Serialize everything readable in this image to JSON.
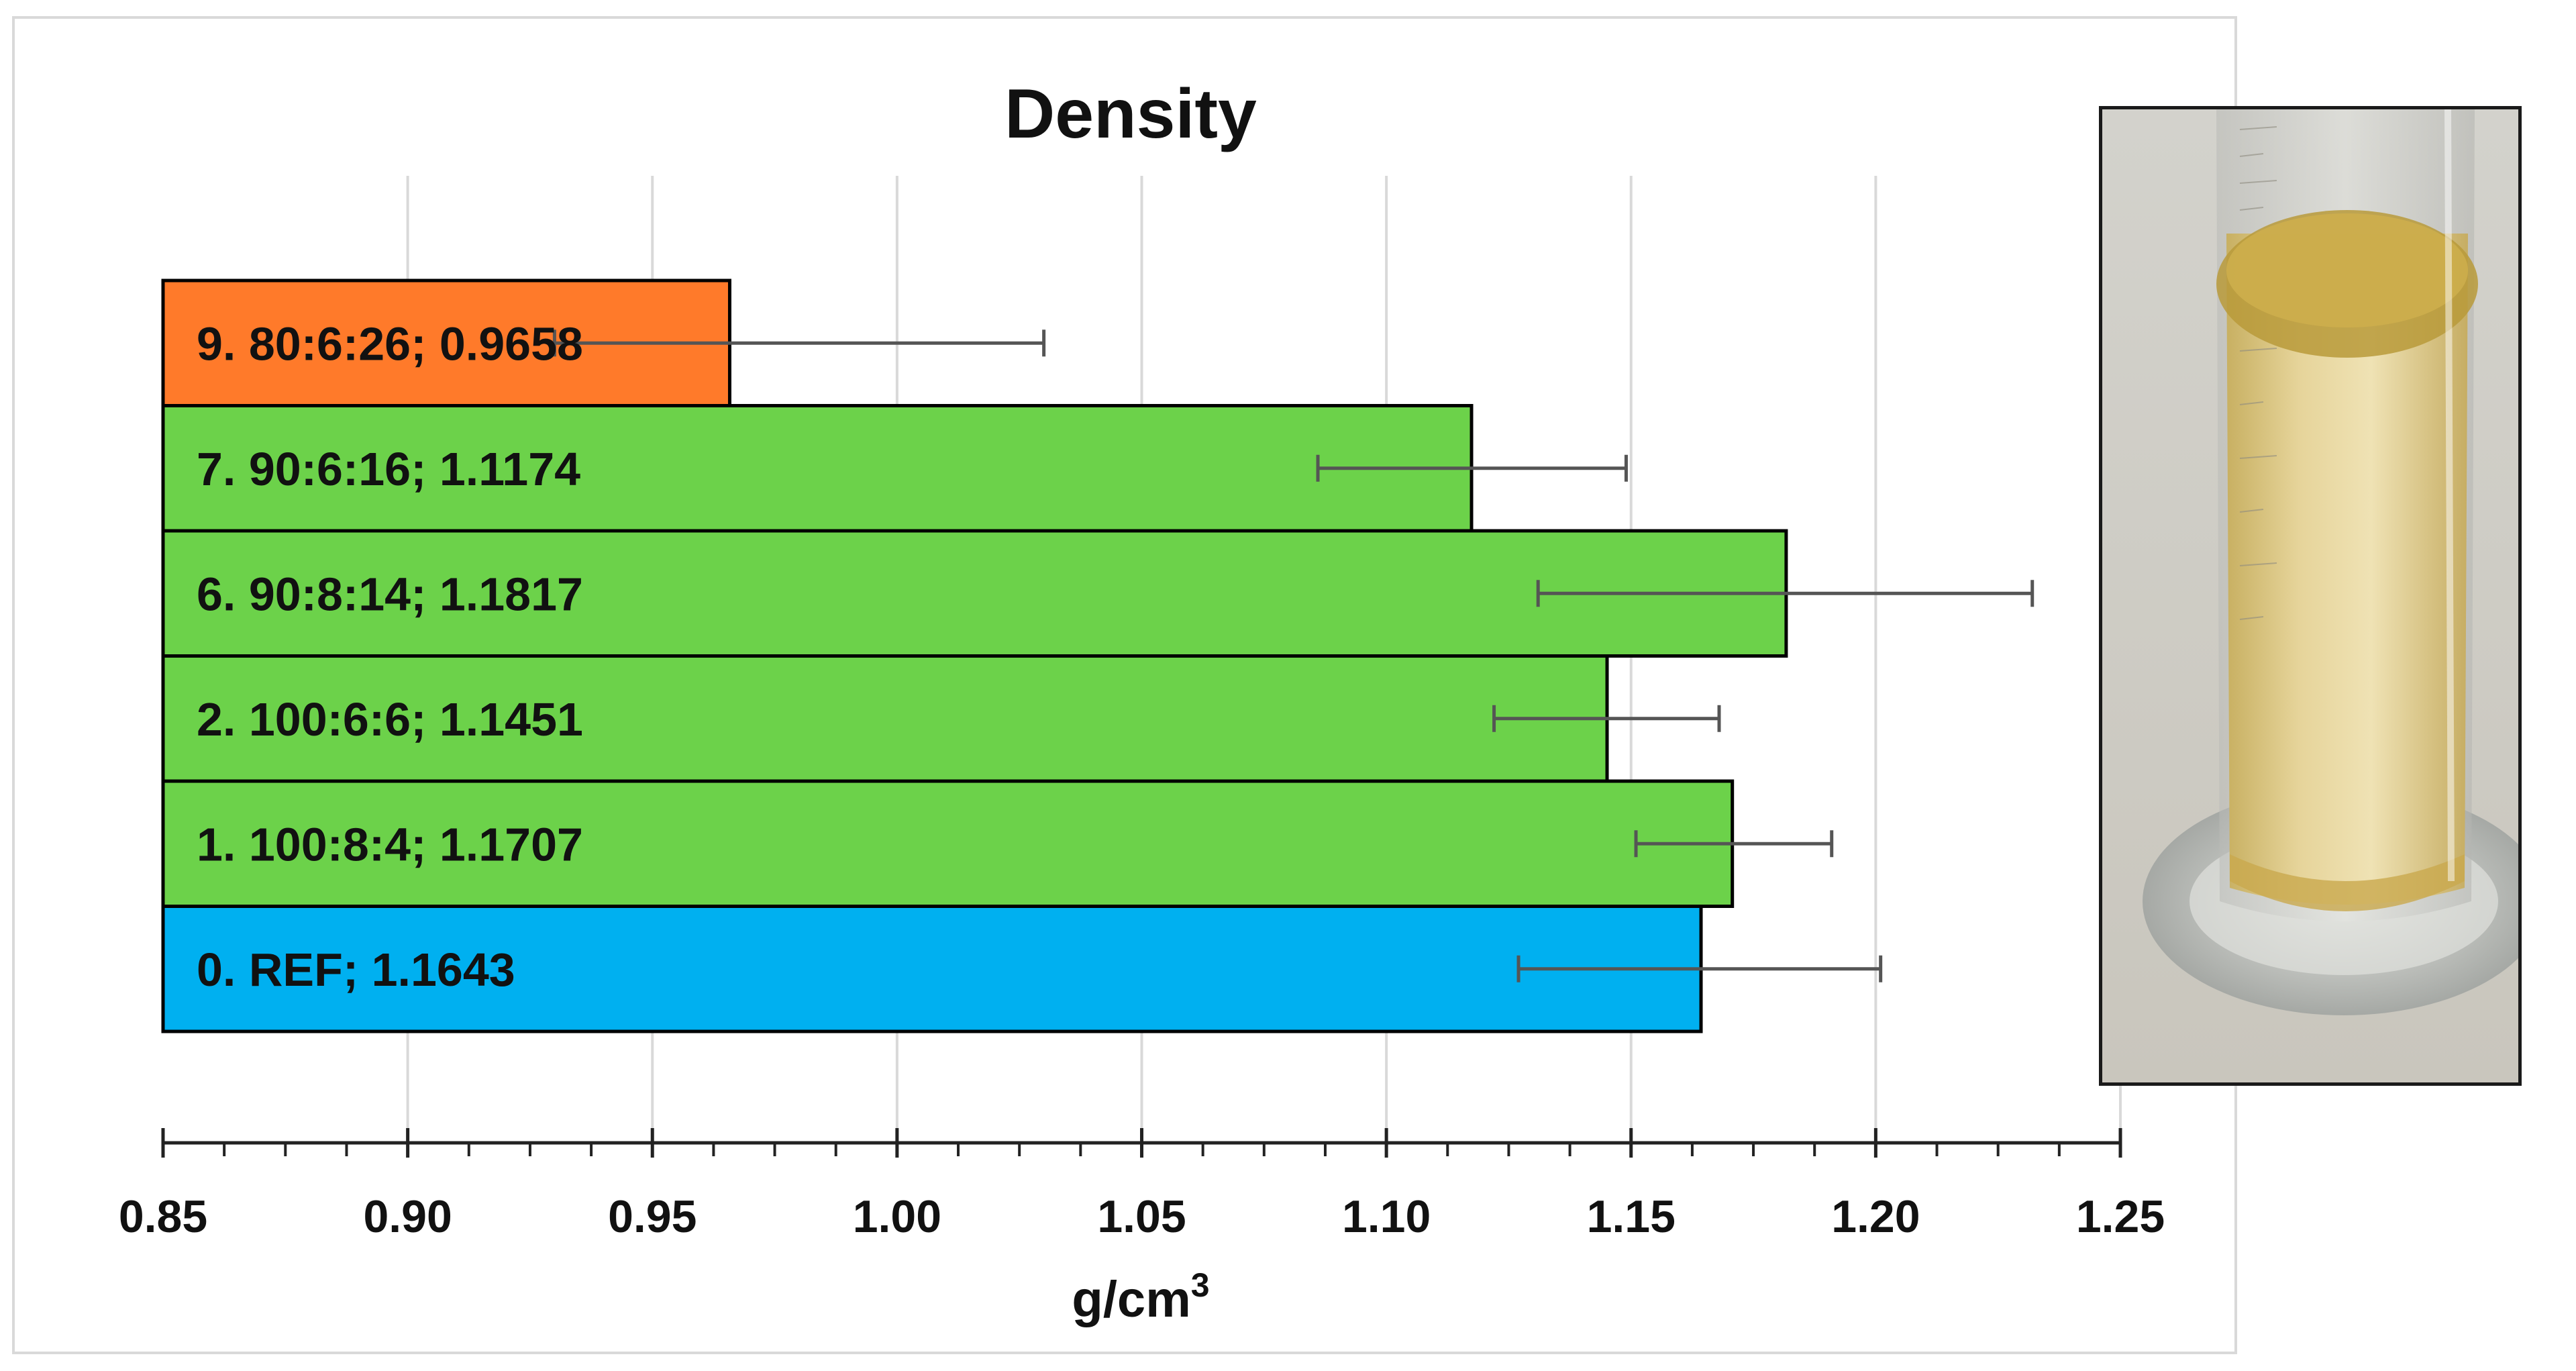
{
  "chart_data": {
    "type": "bar",
    "orientation": "horizontal",
    "title": "Density",
    "xlabel": "g/cm",
    "xlabel_superscript": "3",
    "ylabel": "",
    "xlim": [
      0.85,
      1.25
    ],
    "xticks": [
      "0.85",
      "0.90",
      "0.95",
      "1.00",
      "1.05",
      "1.10",
      "1.15",
      "1.20",
      "1.25"
    ],
    "minor_ticks_per_major": 3,
    "grid": "vertical",
    "bars": [
      {
        "label": "9. 80:6:26; 0.9658",
        "value": 0.9658,
        "err_low": 0.93,
        "err_high": 1.03,
        "color": "#FF7A2A"
      },
      {
        "label": "7. 90:6:16; 1.1174",
        "value": 1.1174,
        "err_low": 1.086,
        "err_high": 1.149,
        "color": "#6CD24A"
      },
      {
        "label": "6. 90:8:14; 1.1817",
        "value": 1.1817,
        "err_low": 1.131,
        "err_high": 1.232,
        "color": "#6CD24A"
      },
      {
        "label": "2. 100:6:6; 1.1451",
        "value": 1.1451,
        "err_low": 1.122,
        "err_high": 1.168,
        "color": "#6CD24A"
      },
      {
        "label": "1. 100:8:4; 1.1707",
        "value": 1.1707,
        "err_low": 1.151,
        "err_high": 1.191,
        "color": "#6CD24A"
      },
      {
        "label": "0. REF; 1.1643",
        "value": 1.1643,
        "err_low": 1.127,
        "err_high": 1.201,
        "color": "#00B0F0"
      }
    ]
  },
  "colors": {
    "text": "#111111",
    "grid": "#D9D9D9",
    "axis": "#222222",
    "error_bar": "#555555",
    "bar_outline": "#000000",
    "frame": "#D9D9D9"
  },
  "photo": {
    "icon": "graduated-cylinder-photo"
  }
}
